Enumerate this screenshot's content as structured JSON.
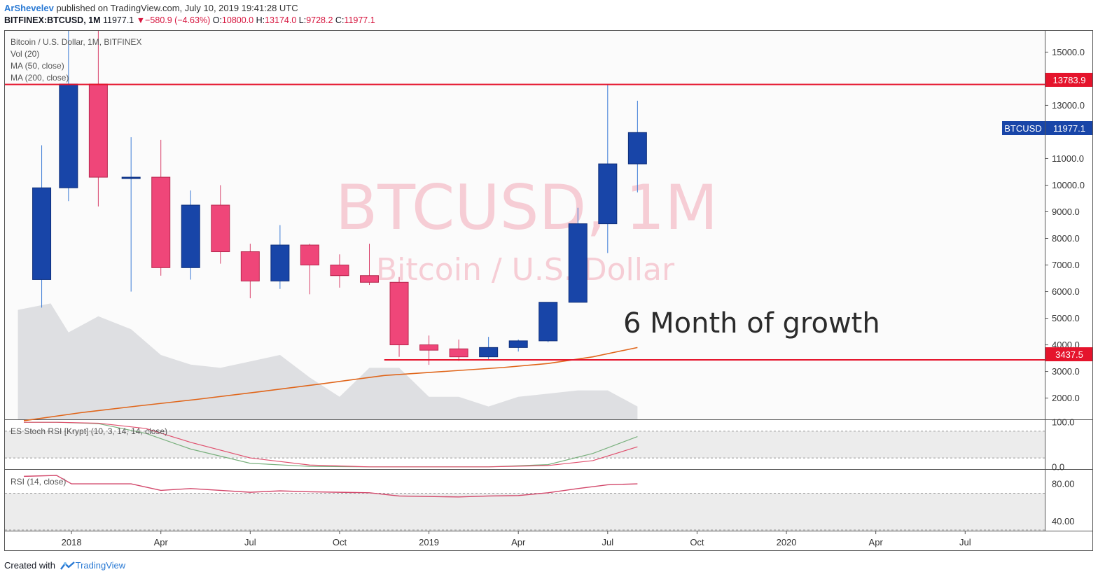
{
  "header": {
    "author": "ArShevelev",
    "published": "published on TradingView.com, July 10, 2019 19:41:28 UTC",
    "symbol": "BITFINEX:BTCUSD, 1M",
    "last": "11977.1",
    "change": "−580.9 (−4.63%)",
    "open_label": "O:",
    "open": "10800.0",
    "high_label": "H:",
    "high": "13174.0",
    "low_label": "L:",
    "low": "9728.2",
    "close_label": "C:",
    "close": "11977.1"
  },
  "legend": {
    "title": "Bitcoin / U.S. Dollar, 1M, BITFINEX",
    "vol": "Vol (20)",
    "ma50": "MA (50, close)",
    "ma200": "MA (200, close)"
  },
  "watermark": {
    "main": "BTCUSD, 1M",
    "sub": "Bitcoin / U.S. Dollar"
  },
  "annotation": "6 Month of growth",
  "price_labels": {
    "resistance": "13783.9",
    "symbol_tag": "BTCUSD",
    "last": "11977.1",
    "support": "3437.5"
  },
  "footer": {
    "created_with": "Created with",
    "brand": "TradingView"
  },
  "colors": {
    "bull": "#1845a8",
    "bear": "#ef4679",
    "line_red": "#e5142c",
    "ma": "#e0661b",
    "volume": "#d8d9dd"
  },
  "chart_data": [
    {
      "type": "candlestick",
      "title": "Bitcoin / U.S. Dollar, 1M, BITFINEX",
      "ylim": [
        1200,
        15800
      ],
      "y_ticks": [
        2000,
        3000,
        4000,
        5000,
        6000,
        7000,
        8000,
        9000,
        10000,
        11000,
        12000,
        13000,
        14000,
        15000
      ],
      "y_tick_labels": [
        "2000.0",
        "3000.0",
        "4000.0",
        "5000.0",
        "6000.0",
        "7000.0",
        "8000.0",
        "9000.0",
        "10000.0",
        "11000.0",
        "12000.0",
        "13000.0",
        "14000.0",
        "15000.0"
      ],
      "x_tick_labels": [
        "2018",
        "Apr",
        "Jul",
        "Oct",
        "2019",
        "Apr",
        "Jul",
        "Oct",
        "2020",
        "Apr",
        "Jul"
      ],
      "x_tick_months": [
        12,
        15,
        18,
        21,
        24,
        27,
        30,
        33,
        36,
        39,
        42
      ],
      "candles": [
        {
          "month": 11,
          "o": 6450,
          "h": 11500,
          "l": 5400,
          "c": 9900
        },
        {
          "month": 11.9,
          "o": 9900,
          "h": 19800,
          "l": 9400,
          "c": 13800
        },
        {
          "month": 12.9,
          "o": 13800,
          "h": 17200,
          "l": 9200,
          "c": 10300
        },
        {
          "month": 14,
          "o": 10300,
          "h": 11800,
          "l": 6000,
          "c": 10300
        },
        {
          "month": 15,
          "o": 10300,
          "h": 11700,
          "l": 6600,
          "c": 6900
        },
        {
          "month": 16,
          "o": 6900,
          "h": 9800,
          "l": 6450,
          "c": 9250
        },
        {
          "month": 17,
          "o": 9250,
          "h": 10000,
          "l": 7050,
          "c": 7500
        },
        {
          "month": 18,
          "o": 7500,
          "h": 7800,
          "l": 5750,
          "c": 6400
        },
        {
          "month": 19,
          "o": 6400,
          "h": 8500,
          "l": 6100,
          "c": 7750
        },
        {
          "month": 20,
          "o": 7750,
          "h": 7800,
          "l": 5900,
          "c": 7000
        },
        {
          "month": 21,
          "o": 7000,
          "h": 7400,
          "l": 6150,
          "c": 6600
        },
        {
          "month": 22,
          "o": 6600,
          "h": 7800,
          "l": 6250,
          "c": 6350
        },
        {
          "month": 23,
          "o": 6350,
          "h": 6550,
          "l": 3550,
          "c": 4000
        },
        {
          "month": 24,
          "o": 4000,
          "h": 4350,
          "l": 3250,
          "c": 3800
        },
        {
          "month": 25,
          "o": 3850,
          "h": 4200,
          "l": 3400,
          "c": 3550
        },
        {
          "month": 26,
          "o": 3550,
          "h": 4300,
          "l": 3450,
          "c": 3900
        },
        {
          "month": 27,
          "o": 3900,
          "h": 4200,
          "l": 3750,
          "c": 4150
        },
        {
          "month": 28,
          "o": 4150,
          "h": 5600,
          "l": 4100,
          "c": 5600
        },
        {
          "month": 29,
          "o": 5600,
          "h": 9150,
          "l": 5600,
          "c": 8550
        },
        {
          "month": 30,
          "o": 8550,
          "h": 13783.9,
          "l": 7450,
          "c": 10800
        },
        {
          "month": 31,
          "o": 10800,
          "h": 13174.0,
          "l": 9728.2,
          "c": 11977.1
        }
      ],
      "horizontal_lines": [
        {
          "value": 13783.9,
          "color": "#e5142c"
        },
        {
          "value": 3437.5,
          "color": "#e5142c"
        }
      ],
      "ma_line": {
        "name": "MA (50, close)",
        "months": [
          10.4,
          12.3,
          14.2,
          16.2,
          18.4,
          20.5,
          22.5,
          24.5,
          26.5,
          28,
          29.5,
          31
        ],
        "values": [
          1150,
          1450,
          1700,
          1950,
          2250,
          2550,
          2850,
          3000,
          3150,
          3300,
          3550,
          3900
        ]
      },
      "volume": {
        "name": "Vol (20)",
        "months": [
          10.2,
          11.3,
          11.9,
          12.9,
          14,
          15,
          16,
          17,
          18,
          19,
          20,
          21,
          22,
          23,
          24,
          25,
          26,
          27,
          28,
          29,
          30,
          31
        ],
        "relative": [
          0.34,
          0.36,
          0.27,
          0.32,
          0.28,
          0.2,
          0.17,
          0.16,
          0.18,
          0.2,
          0.13,
          0.07,
          0.16,
          0.16,
          0.07,
          0.07,
          0.04,
          0.07,
          0.08,
          0.09,
          0.09,
          0.04
        ]
      }
    },
    {
      "type": "line",
      "title": "ES Stoch RSI [Krypt] (10, 3, 14, 14, close)",
      "ylim": [
        -5,
        105
      ],
      "y_ticks": [
        0,
        100
      ],
      "y_tick_labels": [
        "0.0",
        "100.0"
      ],
      "band": [
        20,
        80
      ],
      "series": [
        {
          "name": "K",
          "color": "#79b07d",
          "months": [
            10.4,
            11.5,
            12.9,
            14.5,
            16,
            18,
            20,
            22,
            24,
            26,
            28,
            29.5,
            31
          ],
          "values": [
            100,
            100,
            97,
            75,
            40,
            8,
            1,
            0,
            0,
            0,
            5,
            30,
            68
          ]
        },
        {
          "name": "D",
          "color": "#e0506e",
          "months": [
            10.4,
            11.5,
            12.9,
            14.5,
            16,
            18,
            20,
            22,
            24,
            26,
            28,
            29.5,
            31
          ],
          "values": [
            100,
            100,
            98,
            86,
            55,
            20,
            4,
            0,
            0,
            0,
            3,
            14,
            45
          ]
        }
      ]
    },
    {
      "type": "line",
      "title": "RSI (14, close)",
      "ylim": [
        30,
        95
      ],
      "y_ticks": [
        40,
        80
      ],
      "y_tick_labels": [
        "40.00",
        "80.00"
      ],
      "band": [
        30,
        70
      ],
      "series": [
        {
          "name": "RSI",
          "color": "#d2476a",
          "months": [
            10.4,
            11.5,
            12,
            13,
            14,
            15,
            16,
            17,
            18,
            19,
            20,
            21,
            22,
            23,
            24,
            25,
            26,
            27,
            28,
            29,
            30,
            31
          ],
          "values": [
            88,
            89,
            80,
            80,
            80,
            73,
            75,
            73,
            71,
            72.5,
            71.5,
            71,
            70.5,
            67,
            66.5,
            66,
            67,
            67.5,
            70.5,
            75,
            79,
            80
          ]
        }
      ]
    }
  ]
}
